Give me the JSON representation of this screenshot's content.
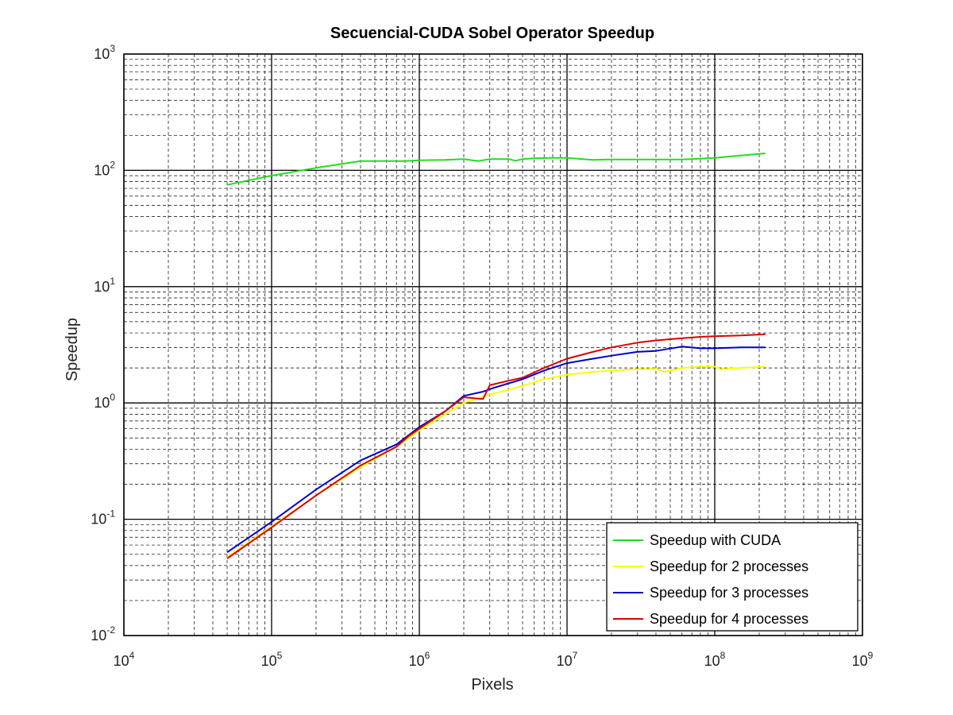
{
  "chart_data": {
    "type": "line",
    "title": "Secuencial-CUDA Sobel Operator Speedup",
    "xlabel": "Pixels",
    "ylabel": "Speedup",
    "xscale": "log",
    "yscale": "log",
    "xlim": [
      10000,
      1000000000
    ],
    "ylim": [
      0.01,
      1000
    ],
    "grid": "major and minor",
    "legend_position": "bottom-right",
    "x_ticks": [
      {
        "base": "10",
        "exp": "4",
        "value": 10000
      },
      {
        "base": "10",
        "exp": "5",
        "value": 100000
      },
      {
        "base": "10",
        "exp": "6",
        "value": 1000000
      },
      {
        "base": "10",
        "exp": "7",
        "value": 10000000
      },
      {
        "base": "10",
        "exp": "8",
        "value": 100000000
      },
      {
        "base": "10",
        "exp": "9",
        "value": 1000000000
      }
    ],
    "y_ticks": [
      {
        "base": "10",
        "exp": "-2",
        "value": 0.01
      },
      {
        "base": "10",
        "exp": "-1",
        "value": 0.1
      },
      {
        "base": "10",
        "exp": "0",
        "value": 1
      },
      {
        "base": "10",
        "exp": "1",
        "value": 10
      },
      {
        "base": "10",
        "exp": "2",
        "value": 100
      },
      {
        "base": "10",
        "exp": "3",
        "value": 1000
      }
    ],
    "series": [
      {
        "name": "Speedup with CUDA",
        "color": "#22dd22",
        "x": [
          50000,
          100000,
          200000,
          400000,
          600000,
          800000,
          1000000,
          1500000,
          2000000,
          2500000,
          3000000,
          4000000,
          4500000,
          5000000,
          6000000,
          8000000,
          10000000,
          15000000,
          20000000,
          30000000,
          40000000,
          60000000,
          80000000,
          100000000,
          150000000,
          220000000
        ],
        "y": [
          75,
          90,
          105,
          120,
          120,
          120,
          122,
          123,
          125,
          120,
          125,
          125,
          121,
          125,
          127,
          128,
          128,
          123,
          124,
          124,
          124,
          124,
          126,
          128,
          134,
          140
        ]
      },
      {
        "name": "Speedup for 2 processes",
        "color": "#ffff00",
        "x": [
          50000,
          100000,
          200000,
          400000,
          700000,
          1000000,
          1500000,
          2000000,
          3000000,
          5000000,
          7000000,
          10000000,
          15000000,
          20000000,
          30000000,
          40000000,
          45000000,
          60000000,
          80000000,
          100000000,
          110000000,
          150000000,
          220000000
        ],
        "y": [
          0.047,
          0.087,
          0.16,
          0.28,
          0.42,
          0.58,
          0.8,
          1.0,
          1.18,
          1.4,
          1.6,
          1.75,
          1.85,
          1.9,
          1.95,
          1.97,
          1.85,
          2.0,
          2.05,
          2.05,
          1.95,
          2.0,
          2.05
        ]
      },
      {
        "name": "Speedup for 3 processes",
        "color": "#0000cc",
        "x": [
          50000,
          100000,
          200000,
          400000,
          700000,
          850000,
          1000000,
          1500000,
          2000000,
          2700000,
          3200000,
          5000000,
          7000000,
          10000000,
          15000000,
          20000000,
          30000000,
          40000000,
          60000000,
          80000000,
          100000000,
          150000000,
          220000000
        ],
        "y": [
          0.052,
          0.095,
          0.18,
          0.32,
          0.44,
          0.53,
          0.62,
          0.85,
          1.15,
          1.25,
          1.35,
          1.6,
          1.9,
          2.2,
          2.4,
          2.55,
          2.75,
          2.8,
          3.05,
          2.95,
          2.95,
          3.0,
          3.0
        ]
      },
      {
        "name": "Speedup for 4 processes",
        "color": "#dd0000",
        "x": [
          50000,
          100000,
          200000,
          400000,
          700000,
          850000,
          1000000,
          1500000,
          2000000,
          2300000,
          2700000,
          3000000,
          4000000,
          5000000,
          7000000,
          10000000,
          15000000,
          20000000,
          30000000,
          40000000,
          60000000,
          80000000,
          100000000,
          150000000,
          220000000
        ],
        "y": [
          0.046,
          0.085,
          0.16,
          0.29,
          0.42,
          0.52,
          0.6,
          0.85,
          1.12,
          1.1,
          1.08,
          1.42,
          1.55,
          1.65,
          2.0,
          2.4,
          2.75,
          3.0,
          3.3,
          3.45,
          3.6,
          3.7,
          3.75,
          3.8,
          3.9
        ]
      }
    ]
  }
}
